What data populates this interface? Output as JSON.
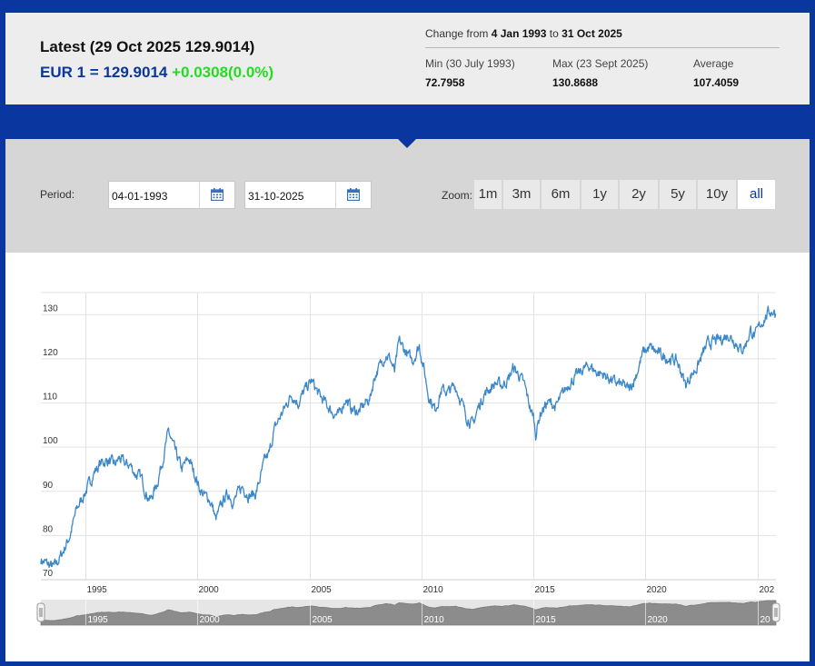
{
  "header": {
    "latest_title": "Latest (29 Oct 2025 129.9014)",
    "rate_prefix": "EUR 1 = 129.9014",
    "rate_change": "+0.0308(0.0%)",
    "range_prefix": "Change from",
    "range_start": "4 Jan 1993",
    "range_to": "to",
    "range_end": "31 Oct 2025",
    "min_label": "Min (30 July 1993)",
    "min_value": "72.7958",
    "max_label": "Max (23 Sept 2025)",
    "max_value": "130.8688",
    "avg_label": "Average",
    "avg_value": "107.4059"
  },
  "controls": {
    "period_label": "Period:",
    "from_date": "04-01-1993",
    "to_date": "31-10-2025",
    "zoom_label": "Zoom:",
    "zoom_buttons": [
      "1m",
      "3m",
      "6m",
      "1y",
      "2y",
      "5y",
      "10y",
      "all"
    ],
    "active_zoom": "all"
  },
  "colors": {
    "frame": "#0a36a0",
    "series": "#3a87c9",
    "positive_change": "#22dd22",
    "navigator_fill": "#8c8c8c"
  },
  "icons": [
    "calendar-icon"
  ],
  "chart_data": {
    "type": "line",
    "x_unit": "year",
    "ylim": [
      70,
      135
    ],
    "xlim": [
      1993.0,
      2025.83
    ],
    "yticks": [
      70,
      80,
      90,
      100,
      110,
      120,
      130
    ],
    "xticks": [
      "1995",
      "2000",
      "2005",
      "2010",
      "2015",
      "2020",
      "202"
    ],
    "grid": true,
    "navigator_labels": [
      "1995",
      "2000",
      "2005",
      "2010",
      "2015",
      "2020",
      "20"
    ],
    "series": [
      {
        "x": [
          1993.0,
          1993.3,
          1993.58,
          1993.8,
          1994.0,
          1994.3,
          1994.6,
          1994.8,
          1995.1,
          1995.4,
          1995.7,
          1996.0,
          1996.3,
          1996.5,
          1996.8,
          1997.0,
          1997.2,
          1997.5,
          1997.7,
          1997.9,
          1998.2,
          1998.5,
          1998.7,
          1999.0,
          1999.3,
          1999.6,
          1999.9,
          2000.1,
          2000.3,
          2000.5,
          2000.7,
          2000.8,
          2001.0,
          2001.2,
          2001.4,
          2001.6,
          2001.8,
          2002.0,
          2002.3,
          2002.6,
          2002.8,
          2003.0,
          2003.2,
          2003.4,
          2003.6,
          2003.9,
          2004.2,
          2004.5,
          2004.8,
          2005.1,
          2005.4,
          2005.7,
          2006.0,
          2006.3,
          2006.6,
          2006.9,
          2007.2,
          2007.5,
          2007.7,
          2007.9,
          2008.2,
          2008.4,
          2008.6,
          2008.8,
          2009.0,
          2009.3,
          2009.6,
          2009.9,
          2010.1,
          2010.3,
          2010.6,
          2010.9,
          2011.2,
          2011.5,
          2011.8,
          2012.0,
          2012.3,
          2012.5,
          2012.8,
          2013.0,
          2013.3,
          2013.6,
          2013.9,
          2014.1,
          2014.4,
          2014.6,
          2014.9,
          2015.0,
          2015.1,
          2015.3,
          2015.6,
          2015.8,
          2016.0,
          2016.3,
          2016.6,
          2016.9,
          2017.2,
          2017.5,
          2017.8,
          2018.1,
          2018.4,
          2018.7,
          2019.0,
          2019.3,
          2019.6,
          2019.9,
          2020.2,
          2020.5,
          2020.8,
          2021.1,
          2021.4,
          2021.6,
          2021.8,
          2022.0,
          2022.3,
          2022.6,
          2022.8,
          2023.1,
          2023.4,
          2023.7,
          2024.0,
          2024.3,
          2024.5,
          2024.7,
          2024.9,
          2025.1,
          2025.3,
          2025.5,
          2025.73,
          2025.83
        ],
        "y": [
          74.5,
          73.5,
          72.8,
          74.5,
          76.5,
          80,
          86,
          88,
          91,
          94.5,
          96.5,
          97,
          96,
          97.5,
          96,
          96,
          94,
          93,
          89.5,
          88,
          92,
          98.5,
          103.5,
          99,
          95,
          97.5,
          93.5,
          90.5,
          89,
          88.5,
          86,
          83.5,
          86,
          88.5,
          89.5,
          87.5,
          89.5,
          91,
          89,
          89.5,
          93,
          97,
          98.5,
          103.5,
          106,
          109,
          112,
          110,
          113,
          115,
          112,
          110,
          108,
          107,
          111,
          108.5,
          108,
          110,
          111,
          116,
          119,
          121,
          120,
          117,
          124,
          121.5,
          119.5,
          123,
          118,
          112,
          108.5,
          113,
          112.5,
          114,
          110,
          107,
          105,
          108.5,
          112,
          113,
          114.5,
          114,
          115.5,
          118,
          116,
          114,
          108,
          107,
          103,
          107.5,
          110,
          110,
          109,
          112,
          114.5,
          116,
          117.5,
          118.5,
          117,
          116.5,
          115.5,
          114.5,
          114,
          113,
          116.5,
          121.5,
          122.5,
          121.5,
          120.5,
          120,
          119.5,
          117,
          114,
          116,
          118,
          121.5,
          123.5,
          124,
          124.5,
          125.5,
          124,
          122,
          123.5,
          126.5,
          125,
          127.5,
          129,
          130.5,
          130.87,
          129.9
        ]
      }
    ]
  }
}
